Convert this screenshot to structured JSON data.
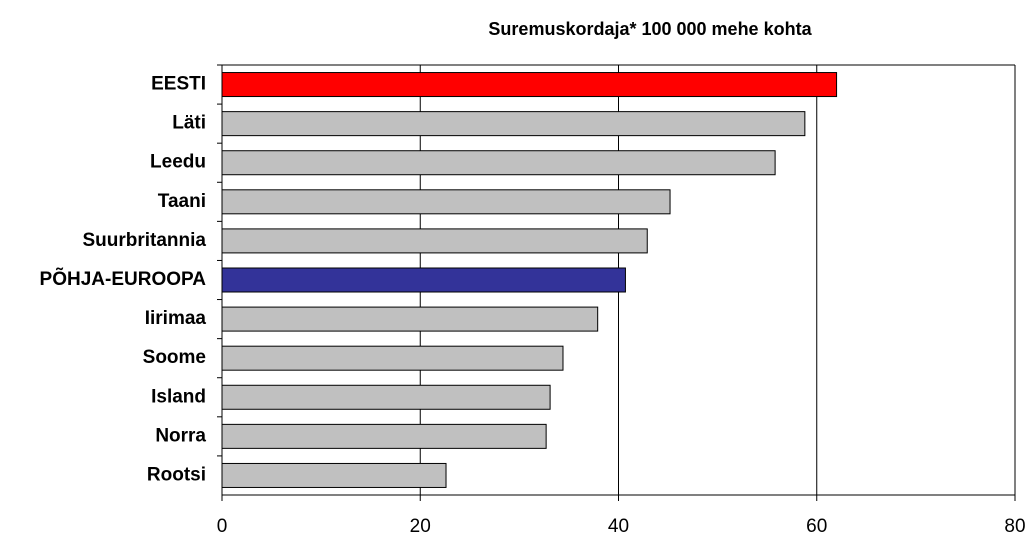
{
  "chart_data": {
    "type": "barh",
    "title": "Suremuskordaja* 100 000 mehe kohta",
    "categories": [
      "EESTI",
      "Läti",
      "Leedu",
      "Taani",
      "Suurbritannia",
      "PÕHJA-EUROOPA",
      "Iirimaa",
      "Soome",
      "Island",
      "Norra",
      "Rootsi"
    ],
    "values": [
      62.0,
      58.8,
      55.8,
      45.2,
      42.9,
      40.7,
      37.9,
      34.4,
      33.1,
      32.7,
      22.6
    ],
    "colors": [
      "#ff0000",
      "#c0c0c0",
      "#c0c0c0",
      "#c0c0c0",
      "#c0c0c0",
      "#333399",
      "#c0c0c0",
      "#c0c0c0",
      "#c0c0c0",
      "#c0c0c0",
      "#c0c0c0"
    ],
    "xlim": [
      0,
      80
    ],
    "xticks": [
      0,
      20,
      40,
      60,
      80
    ],
    "grid": true
  }
}
